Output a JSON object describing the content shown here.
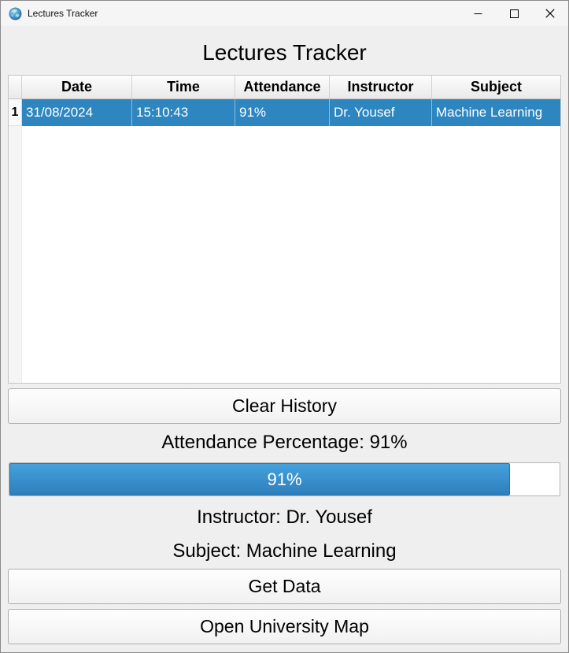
{
  "window": {
    "title": "Lectures Tracker"
  },
  "heading": "Lectures Tracker",
  "table": {
    "columns": [
      "Date",
      "Time",
      "Attendance",
      "Instructor",
      "Subject"
    ],
    "rows": [
      {
        "num": "1",
        "date": "31/08/2024",
        "time": "15:10:43",
        "attendance": "91%",
        "instructor": "Dr. Yousef",
        "subject": "Machine Learning"
      }
    ]
  },
  "labels": {
    "attendance_percentage": "Attendance Percentage: 91%",
    "instructor": "Instructor: Dr. Yousef",
    "subject": "Subject: Machine Learning"
  },
  "progress": {
    "value": 91,
    "text": "91%"
  },
  "buttons": {
    "clear_history": "Clear History",
    "get_data": "Get Data",
    "open_university_map": "Open University Map"
  },
  "colors": {
    "selection_blue": "#2e86c1",
    "progress_gradient_top": "#45a1dc",
    "progress_gradient_bottom": "#2d7fbc"
  }
}
